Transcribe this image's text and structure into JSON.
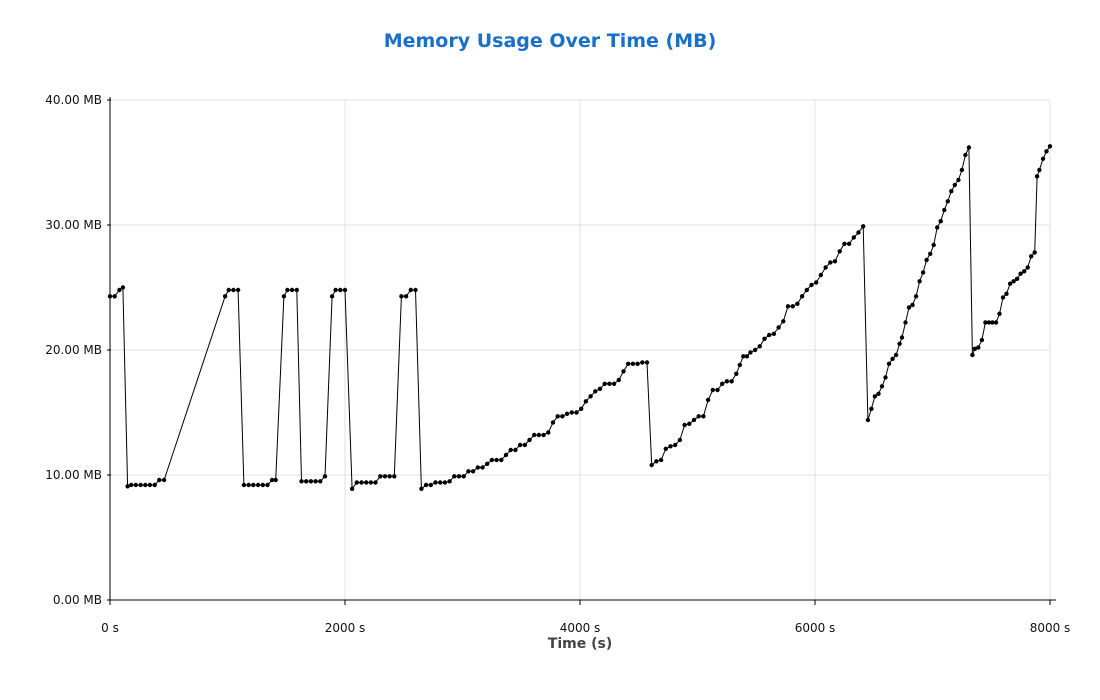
{
  "chart_data": {
    "type": "line",
    "title": "Memory Usage Over Time (MB)",
    "xlabel": "Time (s)",
    "ylabel": "",
    "xlim": [
      0,
      8000
    ],
    "ylim": [
      0,
      40
    ],
    "x_ticks": [
      "0 s",
      "2000 s",
      "4000 s",
      "6000 s",
      "8000 s"
    ],
    "y_ticks": [
      "0.00 MB",
      "10.00 MB",
      "20.00 MB",
      "30.00 MB",
      "40.00 MB"
    ],
    "grid": true,
    "colors": {
      "title": "#1a6fc9",
      "line": "#000000",
      "grid": "#e0e0e0"
    },
    "series": [
      {
        "points": [
          [
            0,
            24.3
          ],
          [
            40,
            24.3
          ],
          [
            80,
            24.8
          ],
          [
            110,
            25.0
          ],
          [
            150,
            9.1
          ],
          [
            180,
            9.2
          ],
          [
            220,
            9.2
          ],
          [
            260,
            9.2
          ],
          [
            300,
            9.2
          ],
          [
            340,
            9.2
          ],
          [
            380,
            9.2
          ],
          [
            420,
            9.6
          ],
          [
            460,
            9.6
          ],
          [
            980,
            24.3
          ],
          [
            1010,
            24.8
          ],
          [
            1050,
            24.8
          ],
          [
            1090,
            24.8
          ],
          [
            1140,
            9.2
          ],
          [
            1180,
            9.2
          ],
          [
            1220,
            9.2
          ],
          [
            1260,
            9.2
          ],
          [
            1300,
            9.2
          ],
          [
            1340,
            9.2
          ],
          [
            1380,
            9.6
          ],
          [
            1410,
            9.6
          ],
          [
            1480,
            24.3
          ],
          [
            1510,
            24.8
          ],
          [
            1550,
            24.8
          ],
          [
            1590,
            24.8
          ],
          [
            1630,
            9.5
          ],
          [
            1670,
            9.5
          ],
          [
            1710,
            9.5
          ],
          [
            1750,
            9.5
          ],
          [
            1790,
            9.5
          ],
          [
            1830,
            9.9
          ],
          [
            1890,
            24.3
          ],
          [
            1920,
            24.8
          ],
          [
            1960,
            24.8
          ],
          [
            2000,
            24.8
          ],
          [
            2060,
            8.9
          ],
          [
            2100,
            9.4
          ],
          [
            2140,
            9.4
          ],
          [
            2180,
            9.4
          ],
          [
            2220,
            9.4
          ],
          [
            2260,
            9.4
          ],
          [
            2300,
            9.9
          ],
          [
            2340,
            9.9
          ],
          [
            2380,
            9.9
          ],
          [
            2420,
            9.9
          ],
          [
            2480,
            24.3
          ],
          [
            2520,
            24.3
          ],
          [
            2560,
            24.8
          ],
          [
            2600,
            24.8
          ],
          [
            2650,
            8.9
          ],
          [
            2690,
            9.2
          ],
          [
            2730,
            9.2
          ],
          [
            2770,
            9.4
          ],
          [
            2810,
            9.4
          ],
          [
            2850,
            9.4
          ],
          [
            2890,
            9.5
          ],
          [
            2930,
            9.9
          ],
          [
            2970,
            9.9
          ],
          [
            3010,
            9.9
          ],
          [
            3050,
            10.3
          ],
          [
            3090,
            10.3
          ],
          [
            3130,
            10.6
          ],
          [
            3170,
            10.6
          ],
          [
            3210,
            10.9
          ],
          [
            3250,
            11.2
          ],
          [
            3290,
            11.2
          ],
          [
            3330,
            11.2
          ],
          [
            3370,
            11.6
          ],
          [
            3410,
            12.0
          ],
          [
            3450,
            12.0
          ],
          [
            3490,
            12.4
          ],
          [
            3530,
            12.4
          ],
          [
            3570,
            12.8
          ],
          [
            3610,
            13.2
          ],
          [
            3650,
            13.2
          ],
          [
            3690,
            13.2
          ],
          [
            3730,
            13.4
          ],
          [
            3770,
            14.2
          ],
          [
            3810,
            14.7
          ],
          [
            3850,
            14.7
          ],
          [
            3890,
            14.9
          ],
          [
            3930,
            15.0
          ],
          [
            3970,
            15.0
          ],
          [
            4010,
            15.3
          ],
          [
            4050,
            15.9
          ],
          [
            4090,
            16.3
          ],
          [
            4130,
            16.7
          ],
          [
            4170,
            16.9
          ],
          [
            4210,
            17.3
          ],
          [
            4250,
            17.3
          ],
          [
            4290,
            17.3
          ],
          [
            4330,
            17.6
          ],
          [
            4370,
            18.3
          ],
          [
            4410,
            18.9
          ],
          [
            4450,
            18.9
          ],
          [
            4490,
            18.9
          ],
          [
            4530,
            19.0
          ],
          [
            4570,
            19.0
          ],
          [
            4610,
            10.8
          ],
          [
            4650,
            11.1
          ],
          [
            4690,
            11.2
          ],
          [
            4730,
            12.1
          ],
          [
            4770,
            12.3
          ],
          [
            4810,
            12.4
          ],
          [
            4850,
            12.8
          ],
          [
            4890,
            14.0
          ],
          [
            4930,
            14.1
          ],
          [
            4970,
            14.4
          ],
          [
            5010,
            14.7
          ],
          [
            5050,
            14.7
          ],
          [
            5090,
            16.0
          ],
          [
            5130,
            16.8
          ],
          [
            5170,
            16.8
          ],
          [
            5210,
            17.3
          ],
          [
            5250,
            17.5
          ],
          [
            5290,
            17.5
          ],
          [
            5330,
            18.1
          ],
          [
            5360,
            18.8
          ],
          [
            5390,
            19.5
          ],
          [
            5420,
            19.5
          ],
          [
            5450,
            19.8
          ],
          [
            5490,
            20.0
          ],
          [
            5530,
            20.3
          ],
          [
            5570,
            20.9
          ],
          [
            5610,
            21.2
          ],
          [
            5650,
            21.3
          ],
          [
            5690,
            21.8
          ],
          [
            5730,
            22.3
          ],
          [
            5770,
            23.5
          ],
          [
            5810,
            23.5
          ],
          [
            5850,
            23.7
          ],
          [
            5890,
            24.3
          ],
          [
            5930,
            24.8
          ],
          [
            5970,
            25.2
          ],
          [
            6010,
            25.4
          ],
          [
            6050,
            26.0
          ],
          [
            6090,
            26.6
          ],
          [
            6130,
            27.0
          ],
          [
            6170,
            27.1
          ],
          [
            6210,
            27.9
          ],
          [
            6250,
            28.5
          ],
          [
            6290,
            28.5
          ],
          [
            6330,
            29.0
          ],
          [
            6370,
            29.4
          ],
          [
            6410,
            29.9
          ],
          [
            6450,
            14.4
          ],
          [
            6480,
            15.3
          ],
          [
            6510,
            16.3
          ],
          [
            6540,
            16.5
          ],
          [
            6570,
            17.1
          ],
          [
            6600,
            17.8
          ],
          [
            6630,
            18.9
          ],
          [
            6660,
            19.3
          ],
          [
            6690,
            19.6
          ],
          [
            6720,
            20.5
          ],
          [
            6740,
            21.0
          ],
          [
            6770,
            22.2
          ],
          [
            6800,
            23.4
          ],
          [
            6830,
            23.6
          ],
          [
            6860,
            24.3
          ],
          [
            6890,
            25.5
          ],
          [
            6920,
            26.2
          ],
          [
            6950,
            27.2
          ],
          [
            6980,
            27.7
          ],
          [
            7010,
            28.4
          ],
          [
            7040,
            29.8
          ],
          [
            7070,
            30.3
          ],
          [
            7100,
            31.2
          ],
          [
            7130,
            31.9
          ],
          [
            7160,
            32.7
          ],
          [
            7190,
            33.2
          ],
          [
            7220,
            33.6
          ],
          [
            7250,
            34.4
          ],
          [
            7280,
            35.6
          ],
          [
            7310,
            36.2
          ],
          [
            7340,
            19.6
          ],
          [
            7360,
            20.1
          ],
          [
            7390,
            20.2
          ],
          [
            7420,
            20.8
          ],
          [
            7450,
            22.2
          ],
          [
            7480,
            22.2
          ],
          [
            7510,
            22.2
          ],
          [
            7540,
            22.2
          ],
          [
            7570,
            22.9
          ],
          [
            7600,
            24.2
          ],
          [
            7630,
            24.5
          ],
          [
            7660,
            25.3
          ],
          [
            7690,
            25.5
          ],
          [
            7720,
            25.7
          ],
          [
            7750,
            26.1
          ],
          [
            7780,
            26.3
          ],
          [
            7810,
            26.6
          ],
          [
            7840,
            27.5
          ],
          [
            7870,
            27.8
          ],
          [
            7890,
            33.9
          ],
          [
            7910,
            34.4
          ],
          [
            7940,
            35.3
          ],
          [
            7970,
            35.9
          ],
          [
            8000,
            36.3
          ]
        ]
      }
    ]
  }
}
